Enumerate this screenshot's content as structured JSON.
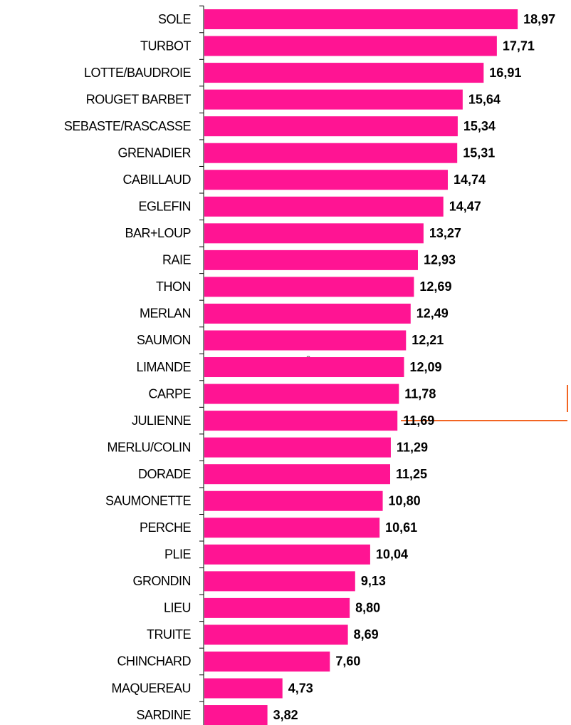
{
  "chart_data": {
    "type": "bar",
    "orientation": "horizontal",
    "color": "#ff1493",
    "annotation": "3",
    "categories": [
      "SOLE",
      "TURBOT",
      "LOTTE/BAUDROIE",
      "ROUGET BARBET",
      "SEBASTE/RASCASSE",
      "GRENADIER",
      "CABILLAUD",
      "EGLEFIN",
      "BAR+LOUP",
      "RAIE",
      "THON",
      "MERLAN",
      "SAUMON",
      "LIMANDE",
      "CARPE",
      "JULIENNE",
      "MERLU/COLIN",
      "DORADE",
      "SAUMONETTE",
      "PERCHE",
      "PLIE",
      "GRONDIN",
      "LIEU",
      "TRUITE",
      "CHINCHARD",
      "MAQUEREAU",
      "SARDINE"
    ],
    "values": [
      18.97,
      17.71,
      16.91,
      15.64,
      15.34,
      15.31,
      14.74,
      14.47,
      13.27,
      12.93,
      12.69,
      12.49,
      12.21,
      12.09,
      11.78,
      11.69,
      11.29,
      11.25,
      10.8,
      10.61,
      10.04,
      9.13,
      8.8,
      8.69,
      7.6,
      4.73,
      3.82
    ],
    "value_labels": [
      "18,97",
      "17,71",
      "16,91",
      "15,64",
      "15,34",
      "15,31",
      "14,74",
      "14,47",
      "13,27",
      "12,93",
      "12,69",
      "12,49",
      "12,21",
      "12,09",
      "11,78",
      "11,69",
      "11,29",
      "11,25",
      "10,80",
      "10,61",
      "10,04",
      "9,13",
      "8,80",
      "8,69",
      "7,60",
      "4,73",
      "3,82"
    ]
  }
}
